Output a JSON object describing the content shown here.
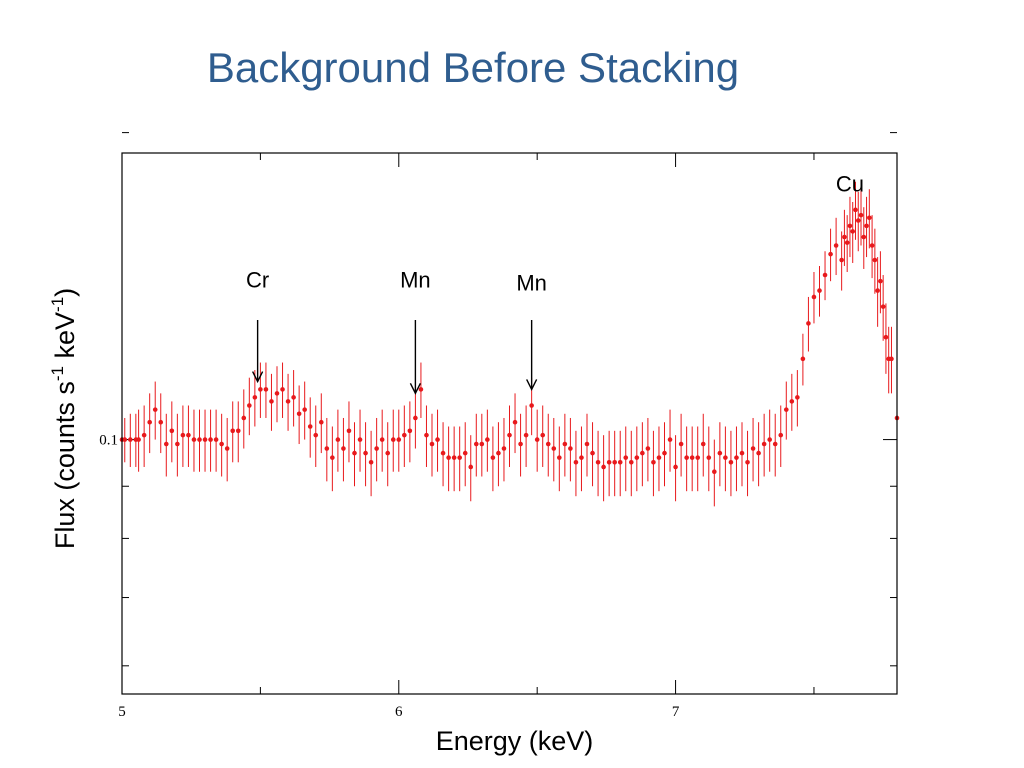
{
  "slide": {
    "title": "Background Before Stacking"
  },
  "colors": {
    "data": "#e8191c",
    "axis": "#000000",
    "title": "#2f5d8f"
  },
  "chart_data": {
    "type": "scatter",
    "title": "",
    "xlabel": "Energy (keV)",
    "ylabel_parts": {
      "main": "Flux (counts s",
      "sup1": "-1",
      "mid": " keV",
      "sup2": "-1",
      "end": ")"
    },
    "xlim": [
      5.0,
      7.8
    ],
    "ylim": [
      0.0563,
      0.191
    ],
    "y_scale": "log",
    "grid": false,
    "legend": "none",
    "x_ticks": [
      {
        "value": 5,
        "label": "5"
      },
      {
        "value": 6,
        "label": "6"
      },
      {
        "value": 7,
        "label": "7"
      }
    ],
    "x_minor_ticks": [
      5.5,
      6.5,
      7.5
    ],
    "y_ticks": [
      {
        "value": 0.1,
        "label": "0.1"
      }
    ],
    "y_minor_ticks": [
      0.06,
      0.07,
      0.08,
      0.09,
      0.2
    ],
    "series": [
      {
        "marker": "circle",
        "error_bars": true,
        "x": [
          5.0,
          5.01,
          5.03,
          5.05,
          5.06,
          5.08,
          5.1,
          5.12,
          5.14,
          5.16,
          5.18,
          5.2,
          5.22,
          5.24,
          5.26,
          5.28,
          5.3,
          5.32,
          5.34,
          5.36,
          5.38,
          5.4,
          5.42,
          5.44,
          5.46,
          5.48,
          5.5,
          5.52,
          5.54,
          5.56,
          5.58,
          5.6,
          5.62,
          5.64,
          5.66,
          5.68,
          5.7,
          5.72,
          5.74,
          5.76,
          5.78,
          5.8,
          5.82,
          5.84,
          5.86,
          5.88,
          5.9,
          5.92,
          5.94,
          5.96,
          5.98,
          6.0,
          6.02,
          6.04,
          6.06,
          6.08,
          6.1,
          6.12,
          6.14,
          6.16,
          6.18,
          6.2,
          6.22,
          6.24,
          6.26,
          6.28,
          6.3,
          6.32,
          6.34,
          6.36,
          6.38,
          6.4,
          6.42,
          6.44,
          6.46,
          6.48,
          6.5,
          6.52,
          6.54,
          6.56,
          6.58,
          6.6,
          6.62,
          6.64,
          6.66,
          6.68,
          6.7,
          6.72,
          6.74,
          6.76,
          6.78,
          6.8,
          6.82,
          6.84,
          6.86,
          6.88,
          6.9,
          6.92,
          6.94,
          6.96,
          6.98,
          7.0,
          7.02,
          7.04,
          7.06,
          7.08,
          7.1,
          7.12,
          7.14,
          7.16,
          7.18,
          7.2,
          7.22,
          7.24,
          7.26,
          7.28,
          7.3,
          7.32,
          7.34,
          7.36,
          7.38,
          7.4,
          7.42,
          7.44,
          7.46,
          7.48,
          7.5,
          7.52,
          7.54,
          7.56,
          7.58,
          7.6,
          7.61,
          7.62,
          7.63,
          7.64,
          7.65,
          7.66,
          7.67,
          7.68,
          7.69,
          7.7,
          7.71,
          7.72,
          7.73,
          7.74,
          7.75,
          7.76,
          7.77,
          7.78,
          7.8
        ],
        "y": [
          0.1,
          0.1,
          0.1,
          0.1,
          0.1,
          0.101,
          0.104,
          0.107,
          0.104,
          0.099,
          0.102,
          0.099,
          0.101,
          0.101,
          0.1,
          0.1,
          0.1,
          0.1,
          0.1,
          0.099,
          0.098,
          0.102,
          0.102,
          0.105,
          0.108,
          0.11,
          0.112,
          0.112,
          0.109,
          0.111,
          0.112,
          0.109,
          0.11,
          0.106,
          0.107,
          0.103,
          0.101,
          0.104,
          0.098,
          0.096,
          0.1,
          0.098,
          0.102,
          0.097,
          0.1,
          0.097,
          0.095,
          0.098,
          0.1,
          0.097,
          0.1,
          0.1,
          0.101,
          0.102,
          0.105,
          0.112,
          0.101,
          0.099,
          0.1,
          0.097,
          0.096,
          0.096,
          0.096,
          0.097,
          0.094,
          0.099,
          0.099,
          0.1,
          0.096,
          0.097,
          0.098,
          0.101,
          0.104,
          0.099,
          0.101,
          0.108,
          0.1,
          0.101,
          0.099,
          0.098,
          0.096,
          0.099,
          0.098,
          0.095,
          0.096,
          0.099,
          0.097,
          0.095,
          0.094,
          0.095,
          0.095,
          0.095,
          0.096,
          0.095,
          0.096,
          0.097,
          0.098,
          0.095,
          0.096,
          0.097,
          0.1,
          0.094,
          0.099,
          0.096,
          0.096,
          0.096,
          0.099,
          0.096,
          0.093,
          0.097,
          0.096,
          0.095,
          0.096,
          0.097,
          0.095,
          0.098,
          0.097,
          0.099,
          0.1,
          0.099,
          0.101,
          0.107,
          0.109,
          0.11,
          0.12,
          0.13,
          0.138,
          0.14,
          0.145,
          0.152,
          0.155,
          0.15,
          0.158,
          0.156,
          0.162,
          0.16,
          0.168,
          0.164,
          0.166,
          0.158,
          0.162,
          0.165,
          0.155,
          0.15,
          0.14,
          0.143,
          0.135,
          0.126,
          0.12,
          0.12,
          0.105
        ],
        "err": [
          0.004,
          0.005,
          0.006,
          0.006,
          0.007,
          0.007,
          0.007,
          0.007,
          0.007,
          0.007,
          0.007,
          0.007,
          0.007,
          0.007,
          0.007,
          0.007,
          0.007,
          0.007,
          0.007,
          0.007,
          0.007,
          0.007,
          0.007,
          0.007,
          0.007,
          0.007,
          0.007,
          0.007,
          0.007,
          0.007,
          0.007,
          0.007,
          0.007,
          0.007,
          0.007,
          0.007,
          0.007,
          0.007,
          0.007,
          0.007,
          0.007,
          0.007,
          0.007,
          0.007,
          0.007,
          0.007,
          0.007,
          0.007,
          0.007,
          0.007,
          0.007,
          0.007,
          0.007,
          0.007,
          0.007,
          0.007,
          0.007,
          0.007,
          0.007,
          0.007,
          0.007,
          0.007,
          0.007,
          0.007,
          0.007,
          0.007,
          0.007,
          0.007,
          0.007,
          0.007,
          0.007,
          0.007,
          0.007,
          0.007,
          0.007,
          0.007,
          0.007,
          0.007,
          0.007,
          0.007,
          0.007,
          0.007,
          0.007,
          0.007,
          0.007,
          0.007,
          0.007,
          0.007,
          0.007,
          0.007,
          0.007,
          0.007,
          0.007,
          0.007,
          0.007,
          0.007,
          0.007,
          0.007,
          0.007,
          0.007,
          0.007,
          0.007,
          0.007,
          0.007,
          0.007,
          0.007,
          0.007,
          0.007,
          0.007,
          0.007,
          0.007,
          0.007,
          0.007,
          0.007,
          0.007,
          0.007,
          0.007,
          0.007,
          0.007,
          0.007,
          0.007,
          0.007,
          0.007,
          0.007,
          0.007,
          0.008,
          0.008,
          0.008,
          0.008,
          0.009,
          0.01,
          0.01,
          0.01,
          0.01,
          0.011,
          0.011,
          0.011,
          0.011,
          0.011,
          0.011,
          0.011,
          0.011,
          0.011,
          0.011,
          0.011,
          0.01,
          0.01,
          0.01,
          0.009,
          0.009,
          0.008
        ]
      }
    ],
    "annotations": [
      {
        "label": "Cr",
        "x": 5.49,
        "y_tip": 0.114,
        "y_tail": 0.131,
        "y_text": 0.141
      },
      {
        "label": "Mn",
        "x": 6.06,
        "y_tip": 0.111,
        "y_tail": 0.131,
        "y_text": 0.141
      },
      {
        "label": "Mn",
        "x": 6.48,
        "y_tip": 0.112,
        "y_tail": 0.131,
        "y_text": 0.14
      },
      {
        "label": "Cu",
        "x": 7.63,
        "y_text": 0.175
      }
    ]
  }
}
